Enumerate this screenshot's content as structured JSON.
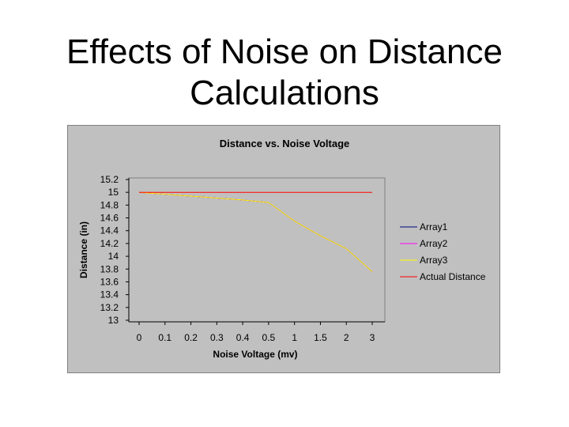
{
  "slide": {
    "title_line1": "Effects of Noise on Distance",
    "title_line2": "Calculations"
  },
  "chart_data": {
    "type": "line",
    "title": "Distance vs. Noise Voltage",
    "xlabel": "Noise Voltage (mv)",
    "ylabel": "Distance (in)",
    "categories": [
      "0",
      "0.1",
      "0.2",
      "0.3",
      "0.4",
      "0.5",
      "1",
      "1.5",
      "2",
      "3"
    ],
    "ylim": [
      13,
      15.2
    ],
    "yticks": [
      "15.2",
      "15",
      "14.8",
      "14.6",
      "14.4",
      "14.2",
      "14",
      "13.8",
      "13.6",
      "13.4",
      "13.2",
      "13"
    ],
    "grid": false,
    "legend_position": "right",
    "series": [
      {
        "name": "Array1",
        "color": "#000080",
        "values": [
          15.0,
          14.97,
          14.94,
          14.91,
          14.88,
          14.84,
          14.55,
          14.32,
          14.12,
          13.76
        ]
      },
      {
        "name": "Array2",
        "color": "#ff00ff",
        "values": [
          15.0,
          14.97,
          14.94,
          14.91,
          14.88,
          14.84,
          14.55,
          14.32,
          14.12,
          13.76
        ]
      },
      {
        "name": "Array3",
        "color": "#ffff00",
        "values": [
          15.0,
          14.97,
          14.94,
          14.91,
          14.88,
          14.84,
          14.55,
          14.32,
          14.12,
          13.76
        ]
      },
      {
        "name": "Actual Distance",
        "color": "#ff0000",
        "values": [
          15.0,
          15.0,
          15.0,
          15.0,
          15.0,
          15.0,
          15.0,
          15.0,
          15.0,
          15.0
        ]
      }
    ]
  }
}
